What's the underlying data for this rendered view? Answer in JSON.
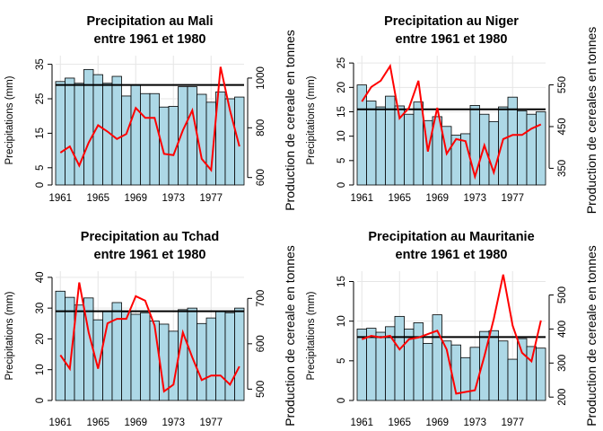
{
  "chart_data": [
    {
      "type": "bar",
      "title": [
        "Precipitation au Mali",
        "entre 1961 et 1980"
      ],
      "ylabel": "Precipitations (mm)",
      "y2label": "Production de cereale en tonnes",
      "categories": [
        "1961",
        "1962",
        "1963",
        "1964",
        "1965",
        "1966",
        "1967",
        "1968",
        "1969",
        "1970",
        "1971",
        "1972",
        "1973",
        "1974",
        "1975",
        "1976",
        "1977",
        "1978",
        "1979",
        "1980"
      ],
      "xtick_labels": [
        "1961",
        "1965",
        "1969",
        "1973",
        "1977"
      ],
      "values": [
        30.0,
        31.0,
        29.5,
        33.5,
        32.0,
        29.5,
        31.5,
        25.8,
        29.0,
        26.5,
        26.5,
        22.6,
        22.8,
        28.5,
        28.5,
        26.3,
        24.0,
        27.0,
        25.0,
        25.5
      ],
      "mean_line": 29.0,
      "ylim": [
        0,
        37.5
      ],
      "yticks": [
        0,
        5,
        15,
        25,
        35
      ],
      "y2lim": [
        570,
        1090
      ],
      "y2ticks": [
        600,
        800,
        1000
      ],
      "series": [
        {
          "values": [
            700,
            725,
            648,
            740,
            810,
            785,
            755,
            775,
            880,
            840,
            840,
            695,
            690,
            790,
            870,
            675,
            630,
            1045,
            870,
            725
          ]
        }
      ],
      "colors": {
        "bar": "#add8e6",
        "line": "#ff0000",
        "mean": "#000000",
        "grid": "#e6e6e6"
      }
    },
    {
      "type": "bar",
      "title": [
        "Precipitation au Niger",
        "entre 1961 et 1980"
      ],
      "ylabel": "Precipitations (mm)",
      "y2label": "Production de cereales en tonnes",
      "categories": [
        "1961",
        "1962",
        "1963",
        "1964",
        "1965",
        "1966",
        "1967",
        "1968",
        "1969",
        "1970",
        "1971",
        "1972",
        "1973",
        "1974",
        "1975",
        "1976",
        "1977",
        "1978",
        "1979",
        "1980"
      ],
      "xtick_labels": [
        "1961",
        "1965",
        "1969",
        "1973",
        "1977"
      ],
      "values": [
        20.5,
        17.2,
        16.0,
        18.2,
        16.2,
        14.5,
        17.0,
        13.2,
        14.0,
        12.0,
        10.2,
        10.5,
        16.3,
        14.5,
        13.0,
        16.0,
        18.0,
        15.2,
        14.5,
        15.0
      ],
      "mean_line": 15.5,
      "ylim": [
        0,
        26.5
      ],
      "yticks": [
        0,
        5,
        10,
        15,
        20,
        25
      ],
      "y2lim": [
        310,
        620
      ],
      "y2ticks": [
        350,
        450,
        550
      ],
      "series": [
        {
          "values": [
            510,
            545,
            560,
            595,
            470,
            495,
            560,
            390,
            495,
            385,
            420,
            415,
            330,
            405,
            340,
            420,
            430,
            430,
            445,
            455
          ]
        }
      ],
      "colors": {
        "bar": "#add8e6",
        "line": "#ff0000",
        "mean": "#000000",
        "grid": "#e6e6e6"
      }
    },
    {
      "type": "bar",
      "title": [
        "Precipitation au Tchad",
        "entre 1961 et 1980"
      ],
      "ylabel": "Precipitations (mm)",
      "y2label": "Production de cereale en tonnes",
      "categories": [
        "1961",
        "1962",
        "1963",
        "1964",
        "1965",
        "1966",
        "1967",
        "1968",
        "1969",
        "1970",
        "1971",
        "1972",
        "1973",
        "1974",
        "1975",
        "1976",
        "1977",
        "1978",
        "1979",
        "1980"
      ],
      "xtick_labels": [
        "1961",
        "1965",
        "1969",
        "1973",
        "1977"
      ],
      "values": [
        35.5,
        33.5,
        31.0,
        33.3,
        26.2,
        29.0,
        31.8,
        28.8,
        28.0,
        28.5,
        25.8,
        24.8,
        22.5,
        29.5,
        30.0,
        25.0,
        26.8,
        29.0,
        28.5,
        30.0
      ],
      "mean_line": 29.0,
      "ylim": [
        0,
        42
      ],
      "yticks": [
        0,
        10,
        20,
        30,
        40
      ],
      "y2lim": [
        475,
        760
      ],
      "y2ticks": [
        500,
        600,
        700
      ],
      "series": [
        {
          "values": [
            575,
            545,
            735,
            625,
            545,
            645,
            655,
            655,
            705,
            695,
            640,
            495,
            510,
            625,
            570,
            520,
            530,
            530,
            510,
            550
          ]
        }
      ],
      "colors": {
        "bar": "#add8e6",
        "line": "#ff0000",
        "mean": "#000000",
        "grid": "#e6e6e6"
      }
    },
    {
      "type": "bar",
      "title": [
        "Precipitation au Mauritanie",
        "entre 1961 et 1980"
      ],
      "ylabel": "Precipitations (mm)",
      "y2label": "Production de cereale en tonnes",
      "categories": [
        "1961",
        "1962",
        "1963",
        "1964",
        "1965",
        "1966",
        "1967",
        "1968",
        "1969",
        "1970",
        "1971",
        "1972",
        "1973",
        "1974",
        "1975",
        "1976",
        "1977",
        "1978",
        "1979",
        "1980"
      ],
      "xtick_labels": [
        "1961",
        "1965",
        "1969",
        "1973",
        "1977"
      ],
      "values": [
        9.0,
        9.1,
        8.6,
        9.3,
        10.6,
        9.0,
        9.8,
        7.2,
        10.8,
        7.5,
        7.0,
        5.4,
        6.7,
        8.7,
        8.8,
        7.5,
        5.2,
        7.8,
        6.8,
        6.6
      ],
      "mean_line": 8.0,
      "ylim": [
        0,
        16.3
      ],
      "yticks": [
        0,
        5,
        10,
        15
      ],
      "y2lim": [
        190,
        570
      ],
      "y2ticks": [
        200,
        300,
        400,
        500
      ],
      "series": [
        {
          "values": [
            370,
            380,
            375,
            380,
            340,
            370,
            375,
            385,
            395,
            340,
            210,
            215,
            220,
            320,
            430,
            560,
            410,
            330,
            305,
            425
          ]
        }
      ],
      "colors": {
        "bar": "#add8e6",
        "line": "#ff0000",
        "mean": "#000000",
        "grid": "#e6e6e6"
      }
    }
  ]
}
